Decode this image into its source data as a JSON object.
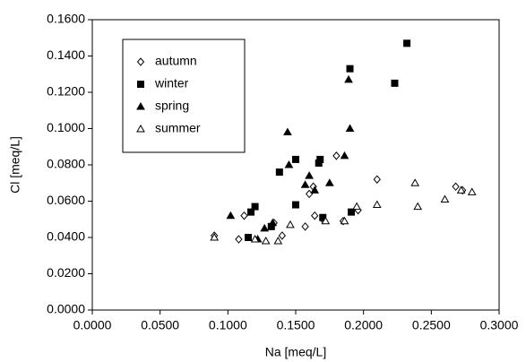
{
  "chart_data": {
    "type": "scatter",
    "x_label": "Na [meq/L]",
    "y_label": "Cl [meq/L]",
    "xlim": [
      0,
      0.3
    ],
    "ylim": [
      0,
      0.16
    ],
    "xticks": [
      {
        "value": 0,
        "label": "0.0000"
      },
      {
        "value": 0.05,
        "label": "0.0500"
      },
      {
        "value": 0.1,
        "label": "0.1000"
      },
      {
        "value": 0.15,
        "label": "0.1500"
      },
      {
        "value": 0.2,
        "label": "0.2000"
      },
      {
        "value": 0.25,
        "label": "0.2500"
      },
      {
        "value": 0.3,
        "label": "0.3000"
      }
    ],
    "yticks": [
      {
        "value": 0,
        "label": "0.0000"
      },
      {
        "value": 0.02,
        "label": "0.0200"
      },
      {
        "value": 0.04,
        "label": "0.0400"
      },
      {
        "value": 0.06,
        "label": "0.0600"
      },
      {
        "value": 0.08,
        "label": "0.0800"
      },
      {
        "value": 0.1,
        "label": "0.1000"
      },
      {
        "value": 0.12,
        "label": "0.1200"
      },
      {
        "value": 0.14,
        "label": "0.1400"
      },
      {
        "value": 0.16,
        "label": "0.1600"
      }
    ],
    "legend": "upper left",
    "series": [
      {
        "name": "autumn",
        "color": "#000000",
        "marker": "diamond-open",
        "x": [
          0.18,
          0.16,
          0.163,
          0.21,
          0.268,
          0.273,
          0.196,
          0.112,
          0.108,
          0.09,
          0.134,
          0.14,
          0.164,
          0.157,
          0.17,
          0.185
        ],
        "values": [
          0.085,
          0.064,
          0.068,
          0.072,
          0.068,
          0.066,
          0.055,
          0.052,
          0.039,
          0.041,
          0.048,
          0.041,
          0.052,
          0.046,
          0.05,
          0.049
        ]
      },
      {
        "name": "winter",
        "color": "#000000",
        "marker": "square-filled",
        "x": [
          0.232,
          0.19,
          0.223,
          0.138,
          0.15,
          0.168,
          0.167,
          0.15,
          0.17,
          0.191,
          0.12,
          0.117,
          0.115,
          0.132
        ],
        "values": [
          0.147,
          0.133,
          0.125,
          0.076,
          0.083,
          0.083,
          0.081,
          0.058,
          0.051,
          0.054,
          0.057,
          0.054,
          0.04,
          0.046
        ]
      },
      {
        "name": "spring",
        "color": "#000000",
        "marker": "triangle-filled",
        "x": [
          0.189,
          0.19,
          0.144,
          0.145,
          0.16,
          0.157,
          0.164,
          0.175,
          0.186,
          0.102,
          0.127,
          0.133,
          0.122
        ],
        "values": [
          0.127,
          0.1,
          0.098,
          0.08,
          0.074,
          0.069,
          0.066,
          0.07,
          0.085,
          0.052,
          0.045,
          0.048,
          0.039
        ]
      },
      {
        "name": "summer",
        "color": "#000000",
        "marker": "triangle-open",
        "x": [
          0.238,
          0.24,
          0.26,
          0.28,
          0.272,
          0.21,
          0.195,
          0.186,
          0.172,
          0.146,
          0.128,
          0.12,
          0.09,
          0.137
        ],
        "values": [
          0.07,
          0.057,
          0.061,
          0.065,
          0.066,
          0.058,
          0.057,
          0.049,
          0.049,
          0.047,
          0.038,
          0.039,
          0.04,
          0.038
        ]
      }
    ]
  }
}
